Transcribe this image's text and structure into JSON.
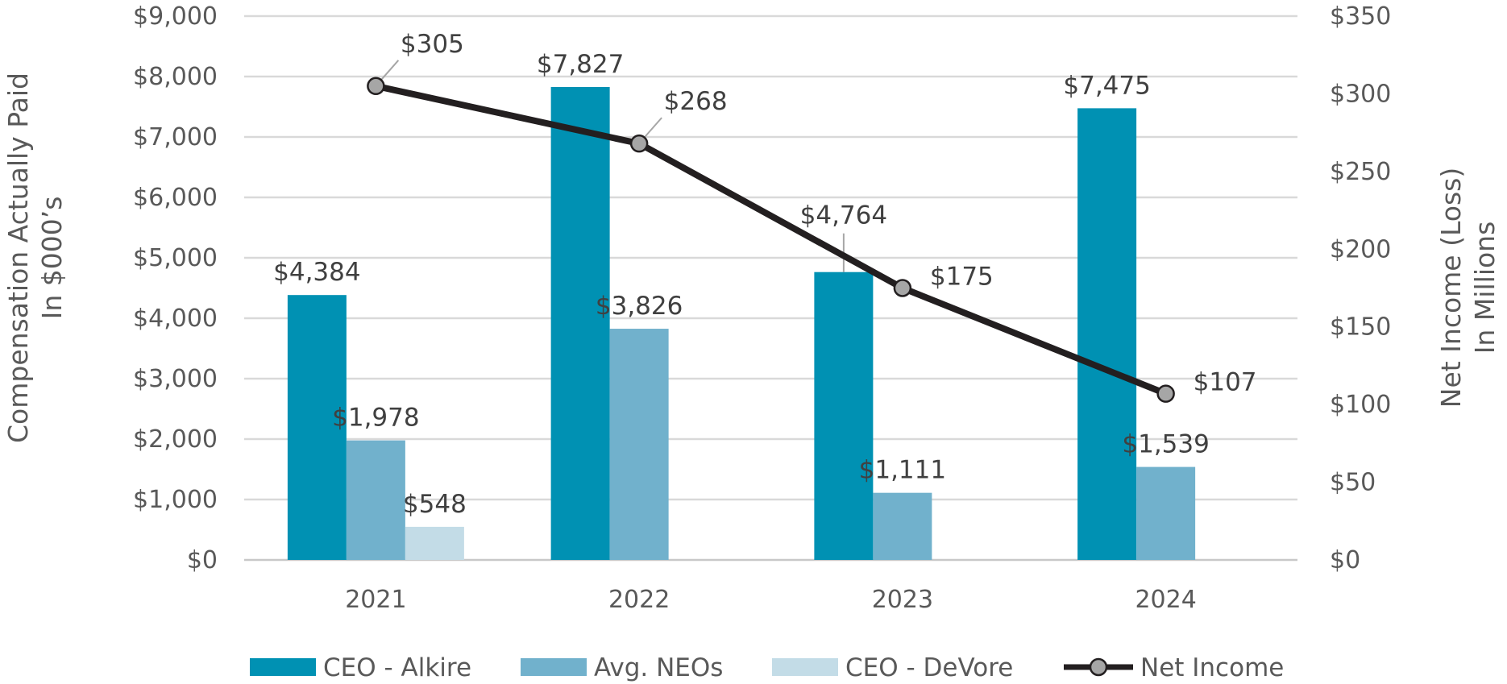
{
  "chart_data": {
    "type": "bar",
    "categories": [
      "2021",
      "2022",
      "2023",
      "2024"
    ],
    "series": [
      {
        "name": "CEO - Alkire",
        "kind": "bar",
        "axis": "left",
        "color": "#0091B3",
        "values": [
          4384,
          7827,
          4764,
          7475
        ],
        "labels": [
          "$4,384",
          "$7,827",
          "$4,764",
          "$7,475"
        ]
      },
      {
        "name": "Avg. NEOs",
        "kind": "bar",
        "axis": "left",
        "color": "#71B1CC",
        "values": [
          1978,
          3826,
          1111,
          1539
        ],
        "labels": [
          "$1,978",
          "$3,826",
          "$1,111",
          "$1,539"
        ]
      },
      {
        "name": "CEO - DeVore",
        "kind": "bar",
        "axis": "left",
        "color": "#C3DCE7",
        "values": [
          548,
          null,
          null,
          null
        ],
        "labels": [
          "$548",
          null,
          null,
          null
        ]
      },
      {
        "name": "Net Income",
        "kind": "line",
        "axis": "right",
        "color": "#231F20",
        "marker_color": "#A6A6A6",
        "values": [
          305,
          268,
          175,
          107
        ],
        "labels": [
          "$305",
          "$268",
          "$175",
          "$107"
        ]
      }
    ],
    "y_left": {
      "title_lines": [
        "Compensation Actually Paid",
        "In $000’s"
      ],
      "ylim": [
        0,
        9000
      ],
      "ticks": [
        "$0",
        "$1,000",
        "$2,000",
        "$3,000",
        "$4,000",
        "$5,000",
        "$6,000",
        "$7,000",
        "$8,000",
        "$9,000"
      ]
    },
    "y_right": {
      "title_lines": [
        "Net Income (Loss)",
        "In Millions"
      ],
      "ylim": [
        0,
        350
      ],
      "ticks": [
        "$0",
        "$50",
        "$100",
        "$150",
        "$200",
        "$250",
        "$300",
        "$350"
      ]
    },
    "grid": true,
    "legend_position": "bottom"
  }
}
